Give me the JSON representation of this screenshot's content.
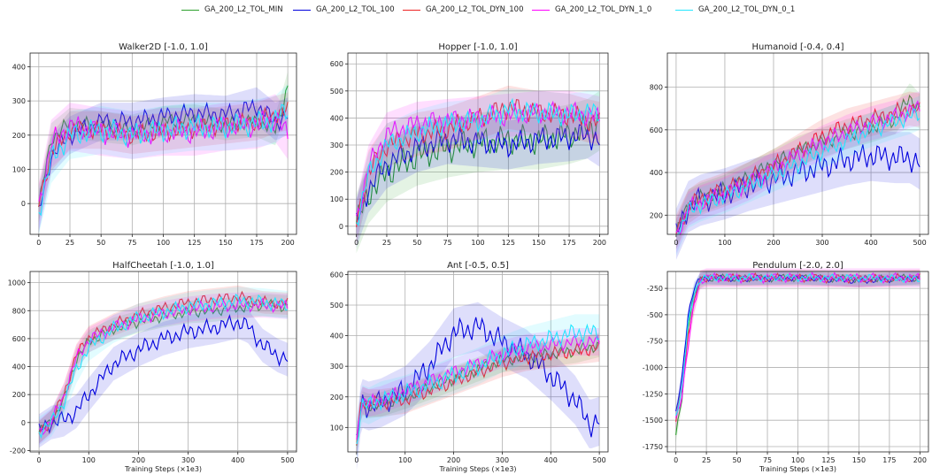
{
  "chart_data": [
    {
      "type": "line",
      "title": "Walker2D [-1.0, 1.0]",
      "xlabel": "",
      "xlim": [
        -7,
        207
      ],
      "ylim": [
        -90,
        440
      ],
      "xticks": [
        0,
        25,
        50,
        75,
        100,
        125,
        150,
        175,
        200
      ],
      "yticks": [
        0,
        100,
        200,
        300,
        400
      ],
      "grid": true,
      "series": [
        {
          "name": "GA_200_L2_TOL_MIN",
          "x": [
            0,
            10,
            25,
            50,
            75,
            100,
            125,
            150,
            175,
            190,
            200
          ],
          "y": [
            -10,
            190,
            235,
            225,
            215,
            240,
            245,
            230,
            240,
            215,
            340
          ],
          "band": 45
        },
        {
          "name": "GA_200_L2_TOL_100",
          "x": [
            0,
            10,
            25,
            50,
            75,
            100,
            125,
            150,
            175,
            190,
            200
          ],
          "y": [
            -30,
            140,
            200,
            240,
            240,
            255,
            265,
            260,
            285,
            240,
            255
          ],
          "band": 55
        },
        {
          "name": "GA_200_L2_TOL_DYN_100",
          "x": [
            0,
            10,
            25,
            50,
            75,
            100,
            125,
            150,
            175,
            190,
            200
          ],
          "y": [
            0,
            150,
            215,
            215,
            200,
            210,
            220,
            230,
            240,
            260,
            270
          ],
          "band": 55
        },
        {
          "name": "GA_200_L2_TOL_DYN_1_0",
          "x": [
            0,
            10,
            25,
            50,
            75,
            100,
            125,
            150,
            175,
            190,
            200
          ],
          "y": [
            -10,
            175,
            225,
            210,
            200,
            210,
            210,
            225,
            230,
            250,
            200
          ],
          "band": 70
        },
        {
          "name": "GA_200_L2_TOL_DYN_0_1",
          "x": [
            0,
            10,
            25,
            50,
            75,
            100,
            125,
            150,
            175,
            190,
            200
          ],
          "y": [
            -20,
            130,
            200,
            215,
            200,
            215,
            225,
            225,
            235,
            245,
            280
          ],
          "band": 70
        }
      ]
    },
    {
      "type": "line",
      "title": "Hopper [-1.0, 1.0]",
      "xlabel": "",
      "xlim": [
        -7,
        207
      ],
      "ylim": [
        -30,
        640
      ],
      "xticks": [
        0,
        25,
        50,
        75,
        100,
        125,
        150,
        175,
        200
      ],
      "yticks": [
        0,
        100,
        200,
        300,
        400,
        500,
        600
      ],
      "grid": true,
      "series": [
        {
          "name": "GA_200_L2_TOL_MIN",
          "x": [
            0,
            10,
            25,
            50,
            75,
            100,
            125,
            150,
            175,
            190,
            200
          ],
          "y": [
            10,
            120,
            200,
            260,
            290,
            310,
            320,
            320,
            340,
            360,
            390
          ],
          "band": 110
        },
        {
          "name": "GA_200_L2_TOL_100",
          "x": [
            0,
            10,
            25,
            50,
            75,
            100,
            125,
            150,
            175,
            190,
            200
          ],
          "y": [
            10,
            140,
            230,
            290,
            320,
            310,
            300,
            320,
            330,
            340,
            310
          ],
          "band": 90
        },
        {
          "name": "GA_200_L2_TOL_DYN_100",
          "x": [
            0,
            10,
            25,
            50,
            75,
            100,
            125,
            150,
            175,
            190,
            200
          ],
          "y": [
            10,
            200,
            300,
            340,
            360,
            400,
            440,
            420,
            410,
            390,
            380
          ],
          "band": 80
        },
        {
          "name": "GA_200_L2_TOL_DYN_1_0",
          "x": [
            0,
            10,
            25,
            50,
            75,
            100,
            125,
            150,
            175,
            190,
            200
          ],
          "y": [
            20,
            220,
            340,
            380,
            390,
            400,
            410,
            420,
            420,
            410,
            400
          ],
          "band": 80
        },
        {
          "name": "GA_200_L2_TOL_DYN_0_1",
          "x": [
            0,
            10,
            25,
            50,
            75,
            100,
            125,
            150,
            175,
            190,
            200
          ],
          "y": [
            20,
            190,
            300,
            350,
            380,
            390,
            430,
            420,
            410,
            420,
            420
          ],
          "band": 80
        }
      ]
    },
    {
      "type": "line",
      "title": "Humanoid [-0.4, 0.4]",
      "xlabel": "",
      "xlim": [
        -18,
        518
      ],
      "ylim": [
        110,
        960
      ],
      "xticks": [
        0,
        100,
        200,
        300,
        400,
        500
      ],
      "yticks": [
        200,
        400,
        600,
        800
      ],
      "grid": true,
      "series": [
        {
          "name": "GA_200_L2_TOL_MIN",
          "x": [
            0,
            25,
            50,
            100,
            150,
            200,
            250,
            300,
            350,
            400,
            450,
            480,
            500
          ],
          "y": [
            110,
            250,
            280,
            320,
            380,
            440,
            500,
            540,
            580,
            610,
            650,
            750,
            700
          ],
          "band": 70
        },
        {
          "name": "GA_200_L2_TOL_100",
          "x": [
            0,
            25,
            50,
            100,
            150,
            200,
            250,
            300,
            350,
            400,
            450,
            480,
            500
          ],
          "y": [
            110,
            240,
            270,
            300,
            340,
            370,
            400,
            430,
            460,
            480,
            470,
            470,
            440
          ],
          "band": 120
        },
        {
          "name": "GA_200_L2_TOL_DYN_100",
          "x": [
            0,
            25,
            50,
            100,
            150,
            200,
            250,
            300,
            350,
            400,
            450,
            480,
            500
          ],
          "y": [
            120,
            240,
            280,
            320,
            370,
            430,
            500,
            570,
            620,
            650,
            680,
            700,
            690
          ],
          "band": 80
        },
        {
          "name": "GA_200_L2_TOL_DYN_1_0",
          "x": [
            0,
            25,
            50,
            100,
            150,
            200,
            250,
            300,
            350,
            400,
            450,
            480,
            500
          ],
          "y": [
            100,
            230,
            260,
            300,
            350,
            420,
            480,
            540,
            590,
            630,
            660,
            690,
            700
          ],
          "band": 80
        },
        {
          "name": "GA_200_L2_TOL_DYN_0_1",
          "x": [
            0,
            25,
            50,
            100,
            150,
            200,
            250,
            300,
            350,
            400,
            450,
            480,
            500
          ],
          "y": [
            90,
            220,
            250,
            290,
            340,
            390,
            440,
            500,
            550,
            600,
            640,
            660,
            680
          ],
          "band": 80
        }
      ]
    },
    {
      "type": "line",
      "title": "HalfCheetah [-1.0, 1.0]",
      "xlabel": "Training Steps (×1e3)",
      "xlim": [
        -18,
        518
      ],
      "ylim": [
        -210,
        1080
      ],
      "xticks": [
        0,
        100,
        200,
        300,
        400,
        500
      ],
      "yticks": [
        -200,
        0,
        200,
        400,
        600,
        800,
        1000
      ],
      "grid": true,
      "series": [
        {
          "name": "GA_200_L2_TOL_MIN",
          "x": [
            0,
            25,
            50,
            75,
            100,
            150,
            200,
            250,
            300,
            350,
            400,
            450,
            500
          ],
          "y": [
            -70,
            10,
            160,
            450,
            580,
            670,
            720,
            760,
            790,
            800,
            820,
            840,
            830
          ],
          "band": 80
        },
        {
          "name": "GA_200_L2_TOL_100",
          "x": [
            0,
            25,
            50,
            75,
            100,
            150,
            200,
            250,
            300,
            350,
            400,
            420,
            450,
            480,
            500
          ],
          "y": [
            -60,
            0,
            20,
            80,
            200,
            420,
            520,
            600,
            650,
            680,
            720,
            690,
            550,
            480,
            450
          ],
          "band": 120
        },
        {
          "name": "GA_200_L2_TOL_DYN_100",
          "x": [
            0,
            25,
            50,
            75,
            100,
            150,
            200,
            250,
            300,
            350,
            400,
            450,
            500
          ],
          "y": [
            -70,
            10,
            200,
            480,
            610,
            700,
            770,
            820,
            860,
            880,
            900,
            860,
            850
          ],
          "band": 80
        },
        {
          "name": "GA_200_L2_TOL_DYN_1_0",
          "x": [
            0,
            25,
            50,
            75,
            100,
            150,
            200,
            250,
            300,
            350,
            400,
            450,
            500
          ],
          "y": [
            -70,
            10,
            190,
            460,
            590,
            680,
            740,
            780,
            810,
            830,
            840,
            840,
            830
          ],
          "band": 90
        },
        {
          "name": "GA_200_L2_TOL_DYN_0_1",
          "x": [
            0,
            25,
            50,
            75,
            100,
            150,
            200,
            250,
            300,
            350,
            400,
            450,
            500
          ],
          "y": [
            -60,
            0,
            150,
            380,
            540,
            670,
            750,
            790,
            830,
            850,
            870,
            860,
            840
          ],
          "band": 100
        }
      ]
    },
    {
      "type": "line",
      "title": "Ant [-0.5, 0.5]",
      "xlabel": "Training Steps (×1e3)",
      "xlim": [
        -18,
        518
      ],
      "ylim": [
        20,
        610
      ],
      "xticks": [
        0,
        100,
        200,
        300,
        400,
        500
      ],
      "yticks": [
        100,
        200,
        300,
        400,
        500,
        600
      ],
      "grid": true,
      "series": [
        {
          "name": "GA_200_L2_TOL_MIN",
          "x": [
            0,
            10,
            25,
            50,
            100,
            150,
            200,
            250,
            300,
            350,
            400,
            450,
            500
          ],
          "y": [
            40,
            180,
            170,
            175,
            200,
            230,
            260,
            290,
            320,
            330,
            340,
            350,
            370
          ],
          "band": 40
        },
        {
          "name": "GA_200_L2_TOL_100",
          "x": [
            0,
            10,
            25,
            50,
            100,
            150,
            200,
            250,
            300,
            350,
            400,
            450,
            480,
            500
          ],
          "y": [
            40,
            180,
            170,
            180,
            220,
            300,
            410,
            430,
            380,
            340,
            270,
            190,
            110,
            120
          ],
          "band": 80
        },
        {
          "name": "GA_200_L2_TOL_DYN_100",
          "x": [
            0,
            10,
            25,
            50,
            100,
            150,
            200,
            250,
            300,
            350,
            400,
            450,
            500
          ],
          "y": [
            50,
            190,
            180,
            180,
            190,
            220,
            250,
            280,
            310,
            330,
            340,
            350,
            360
          ],
          "band": 45
        },
        {
          "name": "GA_200_L2_TOL_DYN_1_0",
          "x": [
            0,
            10,
            25,
            50,
            100,
            150,
            200,
            250,
            300,
            350,
            400,
            450,
            500
          ],
          "y": [
            50,
            190,
            180,
            190,
            220,
            250,
            280,
            310,
            340,
            360,
            370,
            380,
            380
          ],
          "band": 45
        },
        {
          "name": "GA_200_L2_TOL_DYN_0_1",
          "x": [
            0,
            10,
            25,
            50,
            100,
            150,
            200,
            250,
            300,
            350,
            400,
            450,
            500
          ],
          "y": [
            50,
            180,
            170,
            190,
            210,
            240,
            270,
            300,
            340,
            370,
            390,
            410,
            410
          ],
          "band": 60
        }
      ]
    },
    {
      "type": "line",
      "title": "Pendulum [-2.0, 2.0]",
      "xlabel": "Training Steps (×1e3)",
      "xlim": [
        -7,
        207
      ],
      "ylim": [
        -1800,
        -90
      ],
      "xticks": [
        0,
        25,
        50,
        75,
        100,
        125,
        150,
        175,
        200
      ],
      "yticks": [
        -250,
        -500,
        -750,
        -1000,
        -1250,
        -1500,
        -1750
      ],
      "grid": true,
      "series": [
        {
          "name": "GA_200_L2_TOL_MIN",
          "x": [
            0,
            5,
            10,
            15,
            20,
            25,
            50,
            100,
            150,
            200
          ],
          "y": [
            -1640,
            -1300,
            -600,
            -300,
            -180,
            -150,
            -155,
            -150,
            -160,
            -150
          ],
          "band": 70
        },
        {
          "name": "GA_200_L2_TOL_100",
          "x": [
            0,
            5,
            10,
            15,
            20,
            25,
            50,
            100,
            150,
            200
          ],
          "y": [
            -1440,
            -1100,
            -500,
            -250,
            -160,
            -150,
            -160,
            -150,
            -180,
            -150
          ],
          "band": 60
        },
        {
          "name": "GA_200_L2_TOL_DYN_100",
          "x": [
            0,
            5,
            10,
            15,
            20,
            25,
            50,
            100,
            150,
            200
          ],
          "y": [
            -1500,
            -1200,
            -700,
            -400,
            -160,
            -150,
            -150,
            -150,
            -160,
            -150
          ],
          "band": 80
        },
        {
          "name": "GA_200_L2_TOL_DYN_1_0",
          "x": [
            0,
            5,
            10,
            15,
            20,
            25,
            50,
            100,
            150,
            200
          ],
          "y": [
            -1500,
            -1250,
            -800,
            -400,
            -170,
            -150,
            -150,
            -150,
            -150,
            -150
          ],
          "band": 90
        },
        {
          "name": "GA_200_L2_TOL_DYN_0_1",
          "x": [
            0,
            5,
            10,
            15,
            20,
            25,
            50,
            100,
            150,
            200
          ],
          "y": [
            -1450,
            -1200,
            -600,
            -300,
            -160,
            -150,
            -150,
            -150,
            -150,
            -160
          ],
          "band": 70
        }
      ]
    }
  ],
  "legend": {
    "items": [
      {
        "label": "GA_200_L2_TOL_MIN",
        "color": "#2ca02c"
      },
      {
        "label": "GA_200_L2_TOL_100",
        "color": "#0000dd"
      },
      {
        "label": "GA_200_L2_TOL_DYN_100",
        "color": "#ee2222"
      },
      {
        "label": "GA_200_L2_TOL_DYN_1_0",
        "color": "#ff00ff"
      },
      {
        "label": "GA_200_L2_TOL_DYN_0_1",
        "color": "#22e6ff"
      }
    ]
  }
}
